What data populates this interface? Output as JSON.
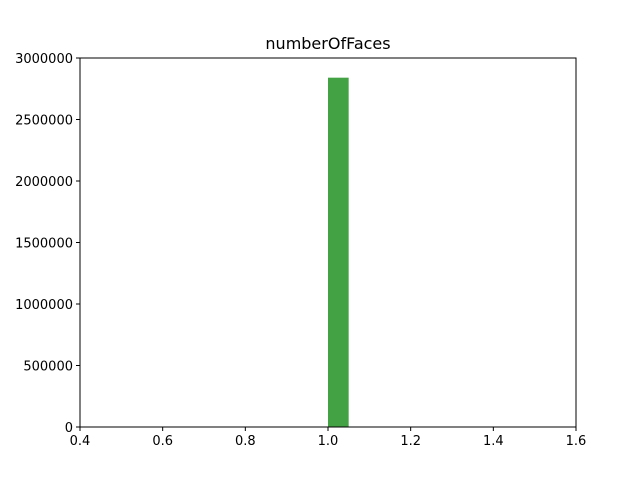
{
  "chart_data": {
    "type": "bar",
    "title": "numberOfFaces",
    "xlabel": "",
    "ylabel": "",
    "xlim": [
      0.4,
      1.6
    ],
    "ylim": [
      0,
      3000000
    ],
    "x_ticks": [
      0.4,
      0.6,
      0.8,
      1.0,
      1.2,
      1.4,
      1.6
    ],
    "x_tick_labels": [
      "0.4",
      "0.6",
      "0.8",
      "1.0",
      "1.2",
      "1.4",
      "1.6"
    ],
    "y_ticks": [
      0,
      500000,
      1000000,
      1500000,
      2000000,
      2500000,
      3000000
    ],
    "y_tick_labels": [
      "0",
      "500000",
      "1000000",
      "1500000",
      "2000000",
      "2500000",
      "3000000"
    ],
    "bars": [
      {
        "x_start": 1.0,
        "x_end": 1.05,
        "value": 2840000
      }
    ],
    "grid": false,
    "colors": {
      "bar": "#43a243",
      "axes": "#000000",
      "background": "#ffffff"
    }
  }
}
